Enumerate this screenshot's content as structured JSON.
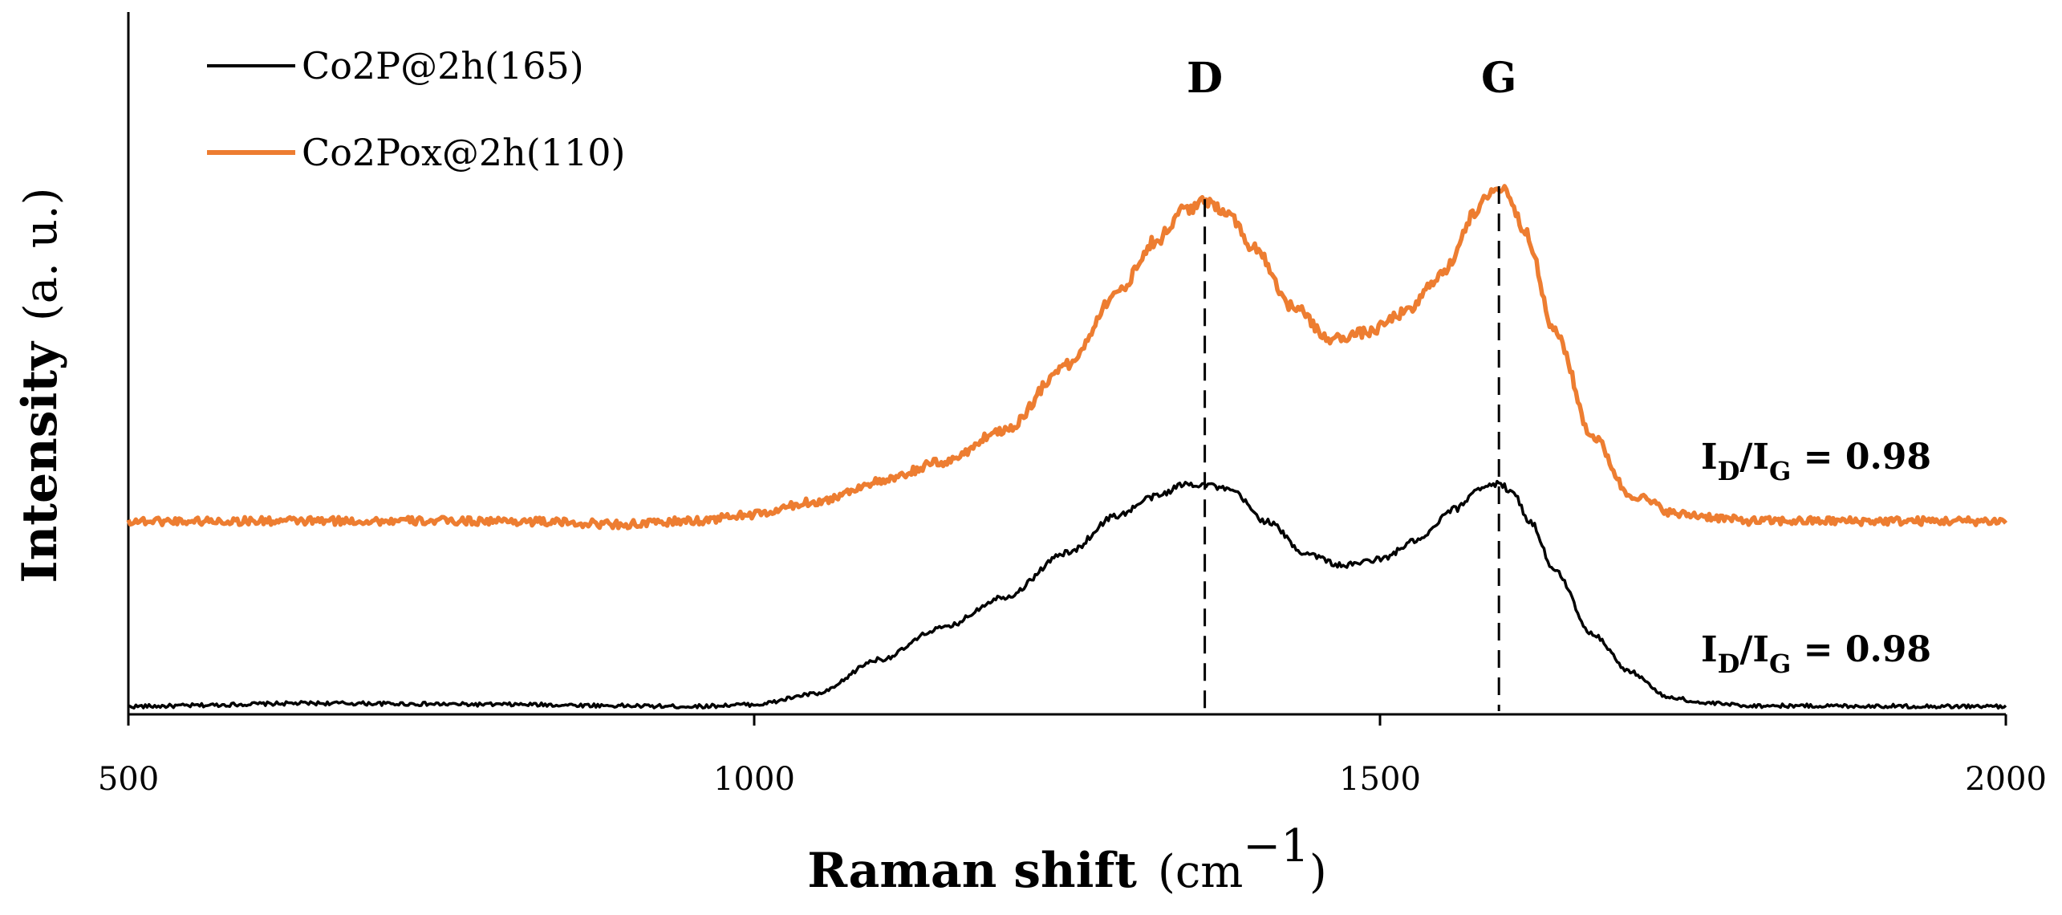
{
  "chart_data": {
    "type": "line",
    "title": "",
    "xlabel": "Raman shift",
    "xlabel_unit_prefix": "(cm",
    "xlabel_unit_exp": "−1",
    "xlabel_unit_suffix": ")",
    "ylabel": "Intensity",
    "ylabel_unit": "(a. u.)",
    "xlim": [
      500,
      2000
    ],
    "ylim": [
      0,
      1
    ],
    "x_ticks": [
      500,
      1000,
      1500,
      2000
    ],
    "x_tick_labels": [
      "500",
      "1000",
      "1500",
      "2000"
    ],
    "grid": false,
    "legend_position": "top-left",
    "series": [
      {
        "name": "Co2P@2h(165)",
        "color": "#000000",
        "baseline": 0.0,
        "x": [
          500,
          650,
          800,
          950,
          1000,
          1050,
          1100,
          1150,
          1200,
          1250,
          1290,
          1320,
          1345,
          1360,
          1380,
          1410,
          1440,
          1470,
          1500,
          1530,
          1560,
          1580,
          1595,
          1605,
          1620,
          1640,
          1670,
          1700,
          1730,
          1760,
          1800,
          2000
        ],
        "y": [
          0.005,
          0.01,
          0.008,
          0.005,
          0.008,
          0.025,
          0.08,
          0.13,
          0.18,
          0.25,
          0.31,
          0.34,
          0.36,
          0.36,
          0.35,
          0.3,
          0.25,
          0.23,
          0.24,
          0.27,
          0.32,
          0.355,
          0.36,
          0.35,
          0.3,
          0.22,
          0.12,
          0.06,
          0.02,
          0.01,
          0.006,
          0.005
        ]
      },
      {
        "name": "Co2Pox@2h(110)",
        "color": "#ED7D31",
        "baseline": 0.0,
        "x": [
          500,
          600,
          700,
          800,
          900,
          950,
          1000,
          1050,
          1100,
          1150,
          1200,
          1250,
          1290,
          1320,
          1345,
          1360,
          1375,
          1400,
          1430,
          1460,
          1490,
          1520,
          1550,
          1575,
          1590,
          1600,
          1615,
          1640,
          1670,
          1700,
          1740,
          1800,
          1900,
          2000
        ],
        "y": [
          0.29,
          0.29,
          0.29,
          0.29,
          0.285,
          0.29,
          0.3,
          0.32,
          0.35,
          0.38,
          0.43,
          0.53,
          0.64,
          0.72,
          0.77,
          0.78,
          0.77,
          0.71,
          0.62,
          0.57,
          0.58,
          0.61,
          0.67,
          0.76,
          0.8,
          0.8,
          0.74,
          0.58,
          0.42,
          0.33,
          0.3,
          0.29,
          0.29,
          0.29
        ]
      }
    ],
    "peak_lines": [
      {
        "label": "D",
        "x": 1360
      },
      {
        "label": "G",
        "x": 1595
      }
    ],
    "annotations": [
      {
        "series": "Co2Pox@2h(110)",
        "label_main": "I",
        "sub_1": "D",
        "slash": "/I",
        "sub_2": "G",
        "value": " = 0.98"
      },
      {
        "series": "Co2P@2h(165)",
        "label_main": "I",
        "sub_1": "D",
        "slash": "/I",
        "sub_2": "G",
        "value": " = 0.98"
      }
    ]
  }
}
